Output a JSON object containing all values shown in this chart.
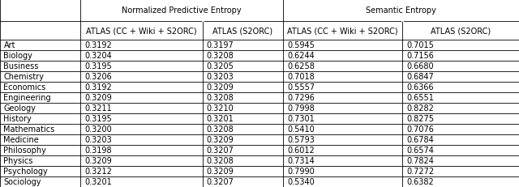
{
  "header_top": [
    "Normalized Predictive Entropy",
    "Semantic Entropy"
  ],
  "header_sub": [
    "ATLAS (CC + Wiki + S2ORC)",
    "ATLAS (S2ORC)",
    "ATLAS (CC + Wiki + S2ORC)",
    "ATLAS (S2ORC)"
  ],
  "row_labels": [
    "Art",
    "Biology",
    "Business",
    "Chemistry",
    "Economics",
    "Engineering",
    "Geology",
    "History",
    "Mathematics",
    "Medicine",
    "Philosophy",
    "Physics",
    "Psychology",
    "Sociology"
  ],
  "data": [
    [
      "0.3192",
      "0.3197",
      "0.5945",
      "0.7015"
    ],
    [
      "0.3204",
      "0.3208",
      "0.6244",
      "0.7156"
    ],
    [
      "0.3195",
      "0.3205",
      "0.6258",
      "0.6680"
    ],
    [
      "0.3206",
      "0.3203",
      "0.7018",
      "0.6847"
    ],
    [
      "0.3192",
      "0.3209",
      "0.5557",
      "0.6366"
    ],
    [
      "0.3209",
      "0.3208",
      "0.7296",
      "0.6551"
    ],
    [
      "0.3211",
      "0.3210",
      "0.7998",
      "0.8282"
    ],
    [
      "0.3195",
      "0.3201",
      "0.7301",
      "0.8275"
    ],
    [
      "0.3200",
      "0.3208",
      "0.5410",
      "0.7076"
    ],
    [
      "0.3203",
      "0.3209",
      "0.5793",
      "0.6784"
    ],
    [
      "0.3198",
      "0.3207",
      "0.6012",
      "0.6574"
    ],
    [
      "0.3209",
      "0.3208",
      "0.7314",
      "0.7824"
    ],
    [
      "0.3212",
      "0.3209",
      "0.7990",
      "0.7272"
    ],
    [
      "0.3201",
      "0.3207",
      "0.5340",
      "0.6382"
    ]
  ],
  "font_size": 7.0,
  "line_color": "#000000",
  "bg_color": "#ffffff"
}
